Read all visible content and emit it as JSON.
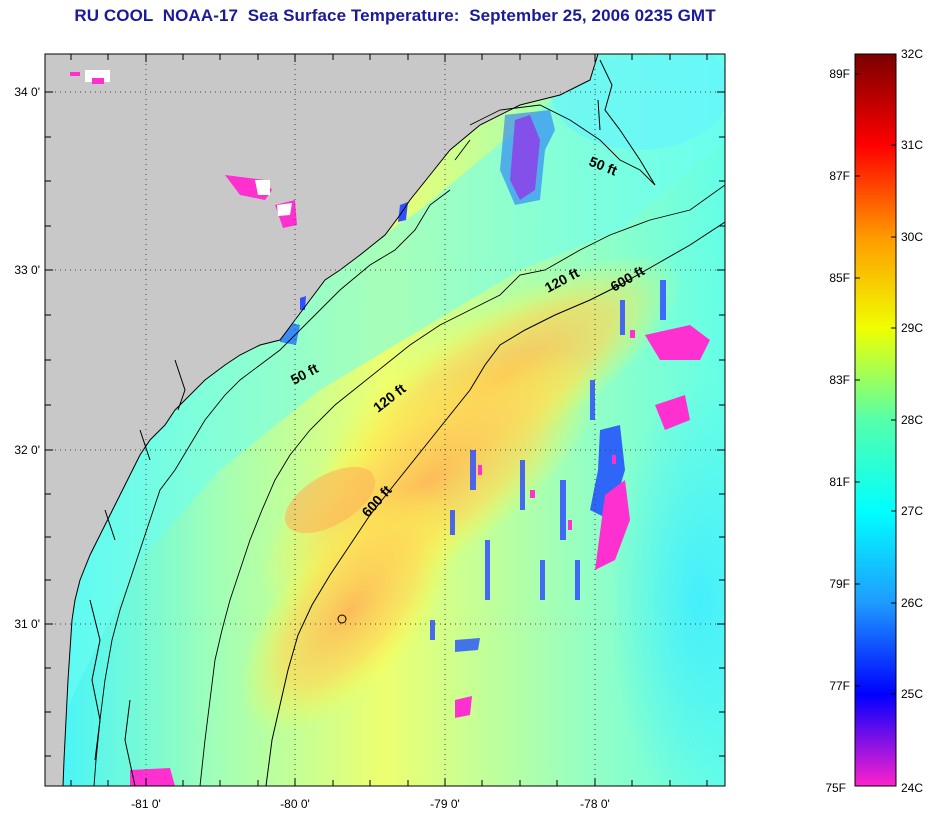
{
  "title": "RU COOL  NOAA-17  Sea Surface Temperature:  September 25, 2006 0235 GMT",
  "map": {
    "lat_labels": [
      "34 0'",
      "33 0'",
      "32 0'",
      "31 0'"
    ],
    "lon_labels": [
      "-81 0'",
      "-80 0'",
      "-79 0'",
      "-78 0'"
    ],
    "contours": {
      "label_50_north": "50 ft",
      "label_50_south": "50 ft",
      "label_120_north": "120 ft",
      "label_120_south": "120 ft",
      "label_600_north": "600 ft",
      "label_600_south": "600 ft"
    }
  },
  "colorbar": {
    "fahrenheit_labels": [
      "89F",
      "87F",
      "85F",
      "83F",
      "81F",
      "79F",
      "77F",
      "75F"
    ],
    "celsius_labels": [
      "32C",
      "31C",
      "30C",
      "29C",
      "28C",
      "27C",
      "26C",
      "25C",
      "24C"
    ],
    "colors": {
      "c24": "#ff22cc",
      "c25": "#0000ff",
      "c26": "#1e9bff",
      "c27": "#00ffff",
      "c28": "#55ffaa",
      "c29": "#f0ff00",
      "c30": "#ff9a00",
      "c31": "#ff0000",
      "c32": "#7a0000"
    }
  }
}
